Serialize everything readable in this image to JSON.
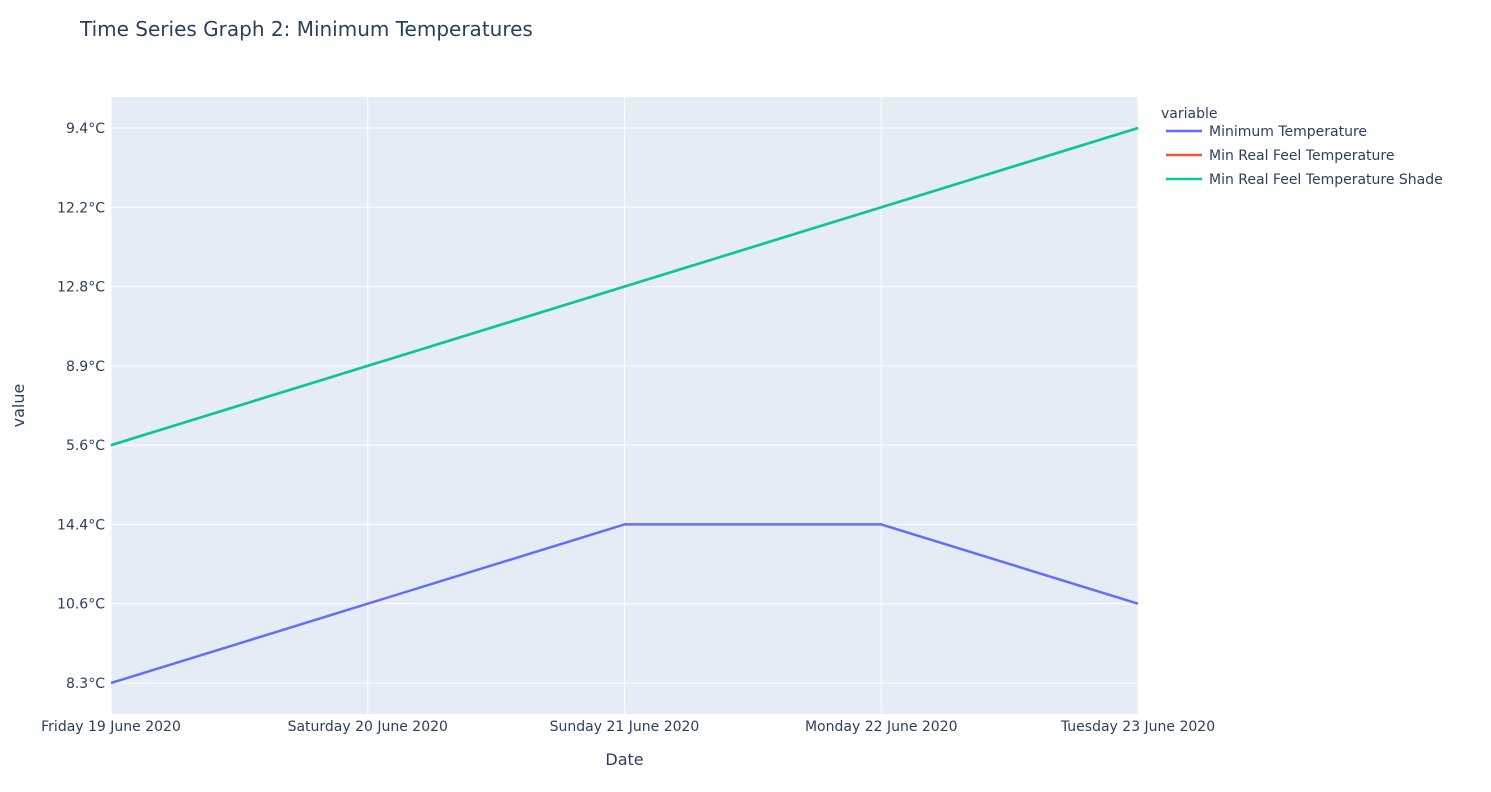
{
  "chart_data": {
    "type": "line",
    "title": "Time Series Graph 2:  Minimum Temperatures",
    "xlabel": "Date",
    "ylabel": "value",
    "x_axis": "categorical",
    "y_axis": "categorical",
    "categories": [
      "Friday 19 June 2020",
      "Saturday 20 June 2020",
      "Sunday 21 June 2020",
      "Monday 22 June 2020",
      "Tuesday 23 June 2020"
    ],
    "y_categories": [
      "8.3°C",
      "10.6°C",
      "14.4°C",
      "5.6°C",
      "8.9°C",
      "12.8°C",
      "12.2°C",
      "9.4°C"
    ],
    "grid": true,
    "plot_background": "#e5ecf6",
    "legend": {
      "title": "variable",
      "position": "right"
    },
    "series": [
      {
        "name": "Minimum Temperature",
        "color": "#636efa",
        "values": [
          "8.3°C",
          "10.6°C",
          "14.4°C",
          "14.4°C",
          "10.6°C"
        ]
      },
      {
        "name": "Min Real Feel Temperature",
        "color": "#ef553b",
        "values": [
          "5.6°C",
          "8.9°C",
          "12.8°C",
          "12.2°C",
          "9.4°C"
        ]
      },
      {
        "name": "Min Real Feel Temperature Shade",
        "color": "#00cc96",
        "values": [
          "5.6°C",
          "8.9°C",
          "12.8°C",
          "12.2°C",
          "9.4°C"
        ]
      }
    ]
  }
}
